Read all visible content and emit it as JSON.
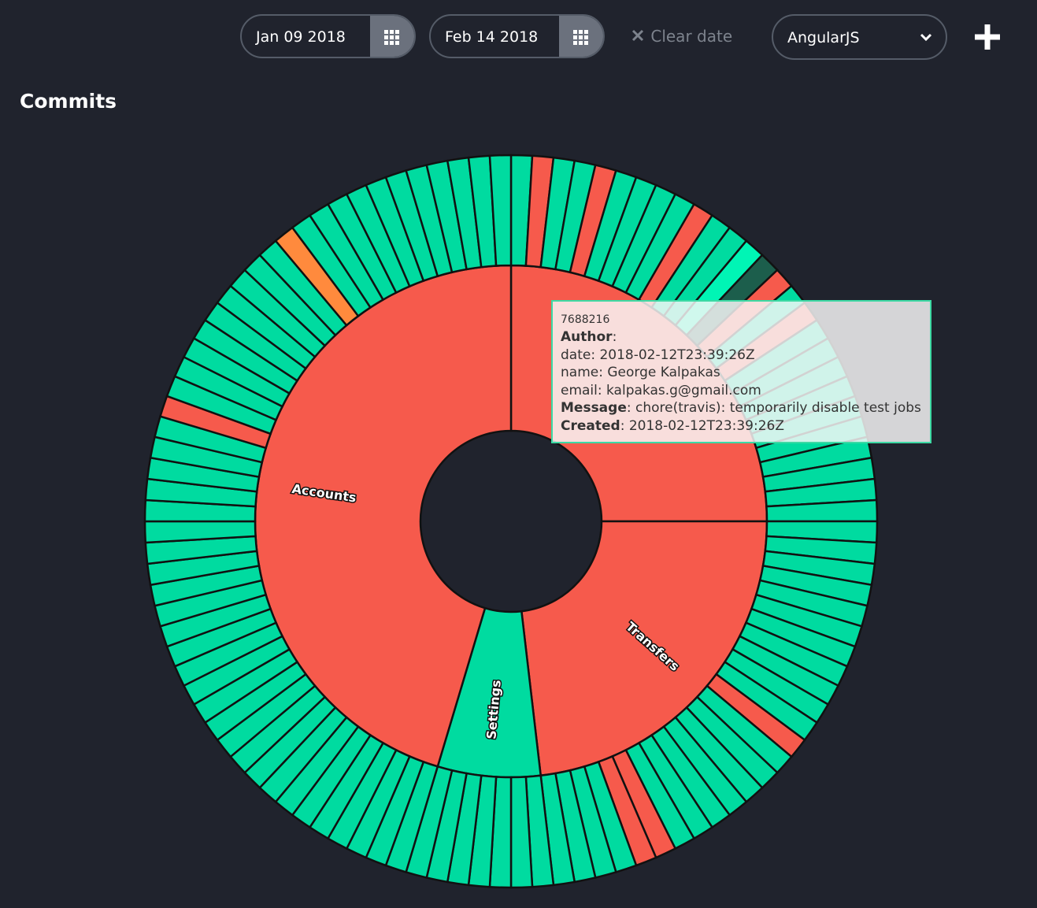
{
  "header": {
    "start_date": "Jan 09 2018",
    "end_date": "Feb 14 2018",
    "clear_date": "Clear date",
    "project": "AngularJS"
  },
  "section_title": "Commits",
  "sunburst": {
    "groups": [
      {
        "name": null,
        "color": "#f65a4c",
        "commit_colors": [
          "#00dba0",
          "#f65a4c",
          "#00dba0",
          "#00dba0",
          "#f65a4c",
          "#00dba0",
          "#00dba0",
          "#00dba0",
          "#00dba0",
          "#f65a4c",
          "#00dba0",
          "#00dba0",
          "#00f5b5",
          "#1c5e4c",
          "#f65a4c",
          "#00dba0",
          "#f65a4c",
          "#00dba0",
          "#00dba0",
          "#00dba0",
          "#00dba0",
          "#00dba0",
          "#00dba0",
          "#00dba0",
          "#00dba0",
          "#00dba0",
          "#00dba0"
        ]
      },
      {
        "name": "Transfers",
        "color": "#f65a4c",
        "commit_colors": [
          "#00dba0",
          "#00dba0",
          "#00dba0",
          "#00dba0",
          "#00dba0",
          "#00dba0",
          "#00dba0",
          "#00dba0",
          "#00dba0",
          "#00dba0",
          "#00dba0",
          "#f65a4c",
          "#00dba0",
          "#00dba0",
          "#00dba0",
          "#00dba0",
          "#00dba0",
          "#00dba0",
          "#00dba0",
          "#f65a4c",
          "#f65a4c",
          "#00dba0",
          "#00dba0",
          "#00dba0",
          "#00dba0"
        ]
      },
      {
        "name": "Settings",
        "color": "#00dba0",
        "commit_colors": [
          "#00dba0",
          "#00dba0",
          "#00dba0",
          "#00dba0",
          "#00dba0",
          "#00dba0",
          "#00dba0"
        ]
      },
      {
        "name": "Accounts",
        "color": "#f65a4c",
        "commit_colors": [
          "#00dba0",
          "#00dba0",
          "#00dba0",
          "#00dba0",
          "#00dba0",
          "#00dba0",
          "#00dba0",
          "#00dba0",
          "#00dba0",
          "#00dba0",
          "#00dba0",
          "#00dba0",
          "#00dba0",
          "#00dba0",
          "#00dba0",
          "#00dba0",
          "#00dba0",
          "#00dba0",
          "#00dba0",
          "#00dba0",
          "#00dba0",
          "#00dba0",
          "#00dba0",
          "#00dba0",
          "#00dba0",
          "#00dba0",
          "#00dba0",
          "#f65a4c",
          "#00dba0",
          "#00dba0",
          "#00dba0",
          "#00dba0",
          "#00dba0",
          "#00dba0",
          "#00dba0",
          "#00dba0",
          "#00dba0",
          "#ff8a3d",
          "#00dba0",
          "#00dba0",
          "#00dba0",
          "#00dba0",
          "#00dba0",
          "#00dba0",
          "#00dba0",
          "#00dba0",
          "#00dba0",
          "#00dba0",
          "#00dba0"
        ]
      }
    ]
  },
  "tooltip": {
    "id": "7688216",
    "lines": [
      {
        "label": "Author",
        "text": ":"
      },
      {
        "label": null,
        "text": "date: 2018-02-12T23:39:26Z"
      },
      {
        "label": null,
        "text": "name: George Kalpakas"
      },
      {
        "label": null,
        "text": "email: kalpakas.g@gmail.com"
      },
      {
        "label": "Message",
        "text": ": chore(travis): temporarily disable test jobs"
      },
      {
        "label": "Created",
        "text": ": 2018-02-12T23:39:26Z"
      }
    ]
  }
}
